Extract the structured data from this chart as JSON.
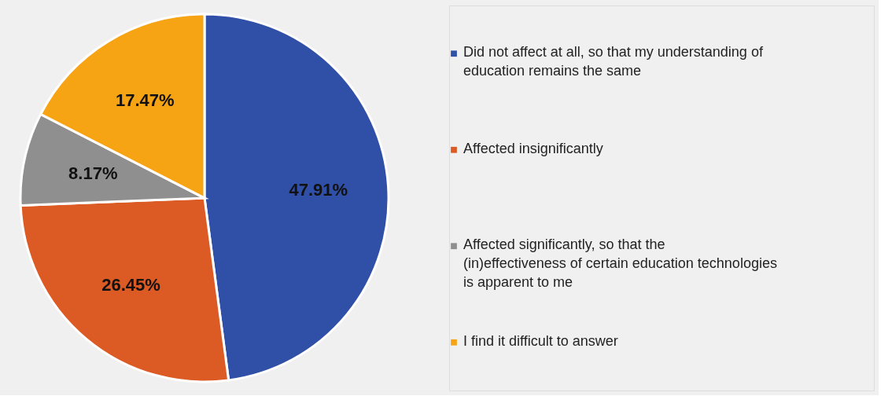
{
  "chart_data": {
    "type": "pie",
    "categories": [
      "Did not affect at all, so that my understanding of education remains the same",
      "Affected insignificantly",
      "Affected significantly, so that the (in)effectiveness of certain education technologies is apparent to me",
      "I find it difficult to answer"
    ],
    "values": [
      47.91,
      26.45,
      8.17,
      17.47
    ],
    "value_labels": [
      "47.91%",
      "26.45%",
      "8.17%",
      "17.47%"
    ],
    "colors": [
      "#3050a8",
      "#dc5a24",
      "#8f8f8f",
      "#f7a414"
    ],
    "legend": "right"
  }
}
